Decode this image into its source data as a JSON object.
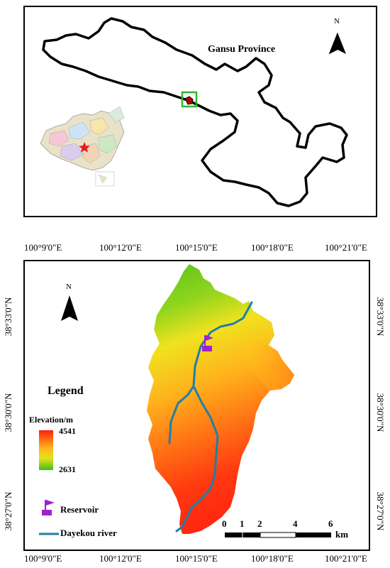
{
  "inset_map": {
    "province_label": "Gansu Province",
    "north_label": "N"
  },
  "main_map": {
    "north_label": "N",
    "top_ticks": [
      "100°9'0\"E",
      "100°12'0\"E",
      "100°15'0\"E",
      "100°18'0\"E",
      "100°21'0\"E"
    ],
    "bottom_ticks": [
      "100°9'0\"E",
      "100°12'0\"E",
      "100°15'0\"E",
      "100°18'0\"E",
      "100°21'0\"E"
    ],
    "left_ticks": [
      "38°33'0\"N",
      "38°30'0\"N",
      "38°27'0\"N"
    ],
    "right_ticks": [
      "38°33'0\"N",
      "38°30'0\"N",
      "38°27'0\"N"
    ],
    "legend": {
      "title": "Legend",
      "elevation_label": "Elevation/m",
      "elevation_max": "4541",
      "elevation_min": "2631",
      "reservoir_label": "Reservoir",
      "river_label": "Dayekou river"
    },
    "scale_bar": {
      "ticks": [
        "0",
        "1",
        "2",
        "4",
        "6"
      ],
      "unit": "km"
    },
    "colors": {
      "high": "#ff2a10",
      "mid": "#ffd21f",
      "low": "#3fbf1a",
      "river": "#1f7fa6",
      "reservoir": "#a020d0",
      "study_box": "#2db82d"
    }
  }
}
